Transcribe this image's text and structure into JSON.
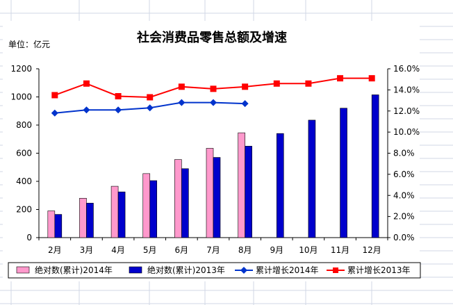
{
  "chart_data": {
    "type": "bar",
    "title": "社会消费品零售总额及增速",
    "unit_label": "单位：亿元",
    "categories": [
      "2月",
      "3月",
      "4月",
      "5月",
      "6月",
      "7月",
      "8月",
      "9月",
      "10月",
      "11月",
      "12月"
    ],
    "ylim": [
      0,
      1200
    ],
    "y_ticks": [
      "0",
      "200",
      "400",
      "600",
      "800",
      "1000",
      "1200"
    ],
    "y2lim": [
      0.0,
      16.0
    ],
    "y2_ticks": [
      "0.0%",
      "2.0%",
      "4.0%",
      "6.0%",
      "8.0%",
      "10.0%",
      "12.0%",
      "14.0%",
      "16.0%"
    ],
    "series": [
      {
        "name": "绝对数(累计)2014年",
        "kind": "bar",
        "axis": "left",
        "color": "#ff99cc",
        "values": [
          190,
          280,
          365,
          455,
          555,
          635,
          745,
          null,
          null,
          null,
          null
        ]
      },
      {
        "name": "绝对数(累计)2013年",
        "kind": "bar",
        "axis": "left",
        "color": "#0000cc",
        "values": [
          165,
          245,
          325,
          405,
          490,
          570,
          650,
          740,
          835,
          920,
          1015
        ]
      },
      {
        "name": "累计增长2014年",
        "kind": "line",
        "axis": "right",
        "color": "#0033cc",
        "marker": "diamond",
        "values": [
          11.8,
          12.1,
          12.1,
          12.3,
          12.8,
          12.8,
          12.7,
          null,
          null,
          null,
          null
        ]
      },
      {
        "name": "累计增长2013年",
        "kind": "line",
        "axis": "right",
        "color": "#ff0000",
        "marker": "square",
        "values": [
          13.5,
          14.6,
          13.4,
          13.3,
          14.3,
          14.1,
          14.3,
          14.6,
          14.6,
          15.1,
          15.1
        ]
      }
    ],
    "grid": false,
    "legend_position": "bottom"
  }
}
